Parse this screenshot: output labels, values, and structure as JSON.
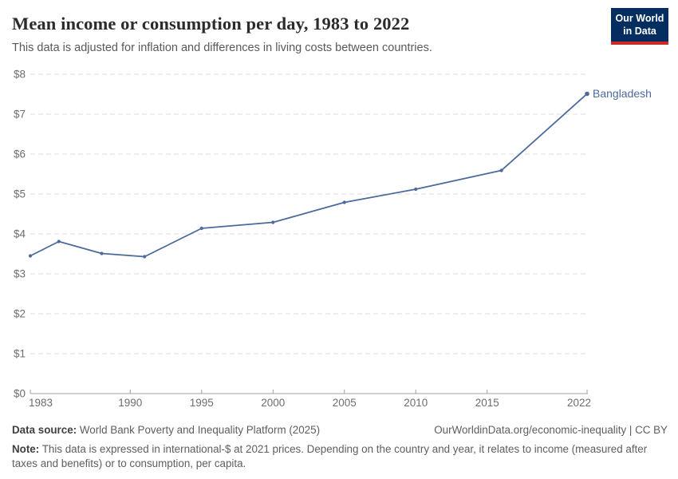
{
  "header": {
    "title": "Mean income or consumption per day, 1983 to 2022",
    "subtitle": "This data is adjusted for inflation and differences in living costs between countries.",
    "logo": {
      "line1": "Our World",
      "line2": "in Data",
      "bg_color": "#042e5f",
      "accent_color": "#cc2a22"
    }
  },
  "chart_data": {
    "type": "line",
    "title": "Mean income or consumption per day, 1983 to 2022",
    "x": [
      1983,
      1985,
      1988,
      1991,
      1995,
      2000,
      2005,
      2010,
      2016,
      2022
    ],
    "series": [
      {
        "name": "Bangladesh",
        "values": [
          3.45,
          3.81,
          3.51,
          3.43,
          4.14,
          4.29,
          4.79,
          5.12,
          5.59,
          7.51
        ]
      }
    ],
    "xlabel": "",
    "ylabel": "",
    "xlim": [
      1983,
      2022
    ],
    "ylim": [
      0,
      8
    ],
    "x_tick_values": [
      1983,
      1990,
      1995,
      2000,
      2005,
      2010,
      2015,
      2022
    ],
    "x_tick_labels": [
      "1983",
      "1990",
      "1995",
      "2000",
      "2005",
      "2010",
      "2015",
      "2022"
    ],
    "y_tick_values": [
      0,
      1,
      2,
      3,
      4,
      5,
      6,
      7,
      8
    ],
    "y_tick_labels": [
      "$0",
      "$1",
      "$2",
      "$3",
      "$4",
      "$5",
      "$6",
      "$7",
      "$8"
    ],
    "grid": "horizontal dashed gridlines, no vertical gridlines",
    "legend_position": "label at end of line",
    "line_color": "#4c6a9c",
    "grid_color": "#dcdcdc",
    "axis_color": "#a1a1a1",
    "tick_text_color": "#6d6d6d"
  },
  "footer": {
    "source_label": "Data source:",
    "source_text": " World Bank Poverty and Inequality Platform (2025)",
    "link_text": "OurWorldinData.org/economic-inequality | CC BY",
    "note_label": "Note:",
    "note_text": " This data is expressed in international-$ at 2021 prices. Depending on the country and year, it relates to income (measured after taxes and benefits) or to consumption, per capita."
  }
}
